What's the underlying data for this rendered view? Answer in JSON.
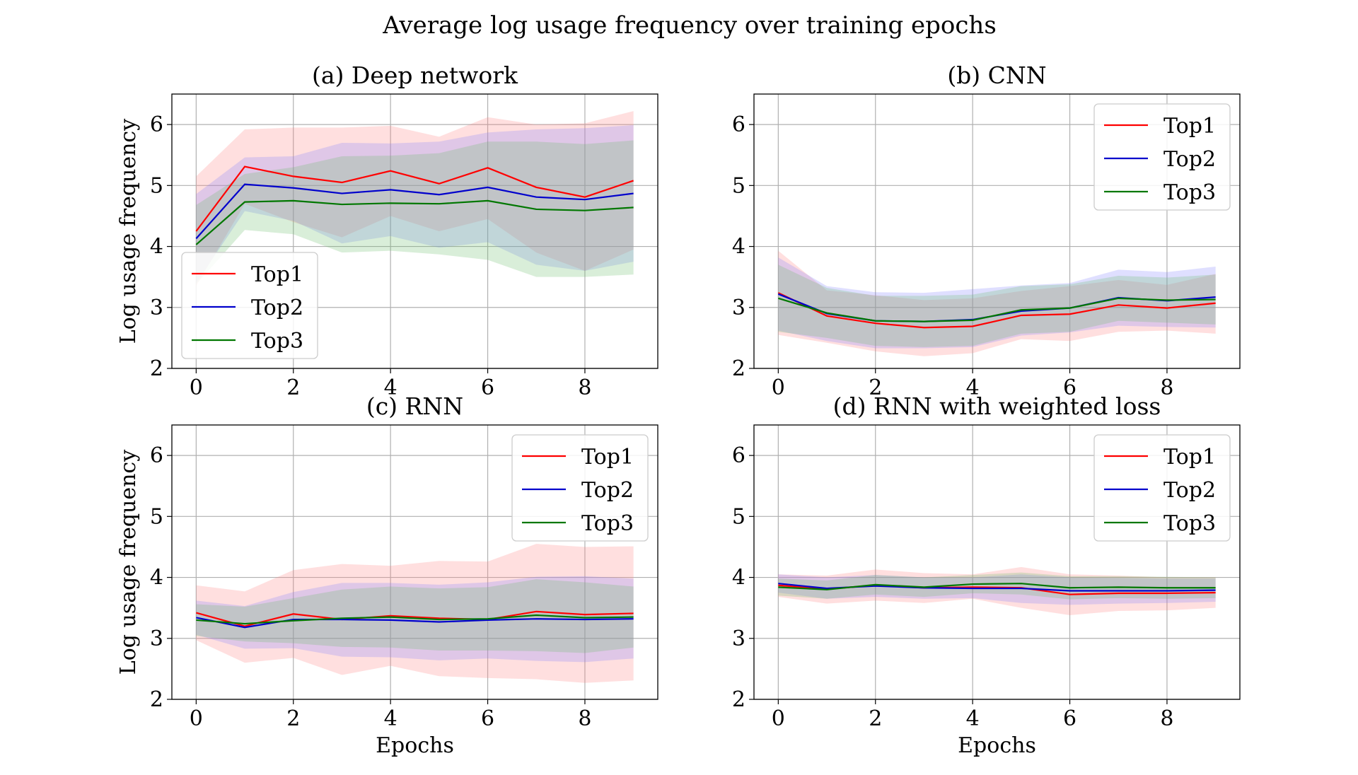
{
  "figure": {
    "title": "Average log usage frequency over training epochs",
    "series_colors": {
      "Top1": "#ff0000",
      "Top2": "#0000cc",
      "Top3": "#007700"
    },
    "band_colors": {
      "Top1": "#ff8080",
      "Top2": "#8080ff",
      "Top3": "#66bb66"
    }
  },
  "chart_data": [
    {
      "type": "line",
      "title": "(a) Deep network",
      "xlabel": "",
      "ylabel": "Log usage frequency",
      "xlim": [
        -0.5,
        9.5
      ],
      "ylim": [
        2,
        6.5
      ],
      "xticks": [
        "0",
        "2",
        "4",
        "6",
        "8"
      ],
      "yticks": [
        "2",
        "3",
        "4",
        "5",
        "6"
      ],
      "grid": true,
      "legend": "lower-left",
      "x": [
        0,
        1,
        2,
        3,
        4,
        5,
        6,
        7,
        8,
        9
      ],
      "series": [
        {
          "name": "Top1",
          "values": [
            4.25,
            5.31,
            5.15,
            5.05,
            5.24,
            5.03,
            5.29,
            4.97,
            4.81,
            5.08
          ],
          "lower": [
            3.35,
            4.7,
            4.4,
            4.15,
            4.5,
            4.25,
            4.45,
            3.9,
            3.6,
            3.95
          ],
          "upper": [
            5.15,
            5.92,
            5.95,
            5.95,
            5.98,
            5.8,
            6.12,
            6.0,
            6.02,
            6.22
          ]
        },
        {
          "name": "Top2",
          "values": [
            4.13,
            5.02,
            4.96,
            4.87,
            4.93,
            4.85,
            4.97,
            4.81,
            4.77,
            4.87
          ],
          "lower": [
            3.4,
            4.58,
            4.42,
            4.05,
            4.17,
            3.98,
            4.07,
            3.7,
            3.6,
            3.75
          ],
          "upper": [
            4.86,
            5.46,
            5.48,
            5.7,
            5.69,
            5.72,
            5.87,
            5.92,
            5.94,
            5.99
          ]
        },
        {
          "name": "Top3",
          "values": [
            4.03,
            4.73,
            4.75,
            4.69,
            4.71,
            4.7,
            4.75,
            4.61,
            4.59,
            4.64
          ],
          "lower": [
            3.38,
            4.27,
            4.2,
            3.9,
            3.93,
            3.87,
            3.78,
            3.5,
            3.5,
            3.54
          ],
          "upper": [
            4.68,
            5.19,
            5.3,
            5.48,
            5.49,
            5.53,
            5.72,
            5.72,
            5.68,
            5.74
          ]
        }
      ]
    },
    {
      "type": "line",
      "title": "(b) CNN",
      "xlabel": "",
      "ylabel": "",
      "xlim": [
        -0.5,
        9.5
      ],
      "ylim": [
        2,
        6.5
      ],
      "xticks": [
        "0",
        "2",
        "4",
        "6",
        "8"
      ],
      "yticks": [
        "2",
        "3",
        "4",
        "5",
        "6"
      ],
      "grid": true,
      "legend": "top-right",
      "x": [
        0,
        1,
        2,
        3,
        4,
        5,
        6,
        7,
        8,
        9
      ],
      "series": [
        {
          "name": "Top1",
          "values": [
            3.24,
            2.86,
            2.74,
            2.67,
            2.69,
            2.87,
            2.89,
            3.04,
            2.99,
            3.07
          ],
          "lower": [
            2.55,
            2.42,
            2.28,
            2.2,
            2.25,
            2.48,
            2.45,
            2.6,
            2.62,
            2.57
          ],
          "upper": [
            3.93,
            3.28,
            3.2,
            3.12,
            3.15,
            3.27,
            3.35,
            3.45,
            3.37,
            3.55
          ]
        },
        {
          "name": "Top2",
          "values": [
            3.22,
            2.9,
            2.78,
            2.77,
            2.8,
            2.94,
            2.99,
            3.16,
            3.11,
            3.17
          ],
          "lower": [
            2.62,
            2.45,
            2.33,
            2.33,
            2.35,
            2.54,
            2.59,
            2.7,
            2.68,
            2.67
          ],
          "upper": [
            3.82,
            3.35,
            3.25,
            3.24,
            3.3,
            3.36,
            3.4,
            3.62,
            3.58,
            3.67
          ]
        },
        {
          "name": "Top3",
          "values": [
            3.15,
            2.91,
            2.78,
            2.77,
            2.79,
            2.96,
            2.99,
            3.15,
            3.12,
            3.13
          ],
          "lower": [
            2.6,
            2.5,
            2.37,
            2.35,
            2.37,
            2.57,
            2.6,
            2.78,
            2.75,
            2.72
          ],
          "upper": [
            3.7,
            3.32,
            3.19,
            3.19,
            3.21,
            3.35,
            3.38,
            3.52,
            3.49,
            3.54
          ]
        }
      ]
    },
    {
      "type": "line",
      "title": "(c) RNN",
      "xlabel": "Epochs",
      "ylabel": "Log usage frequency",
      "xlim": [
        -0.5,
        9.5
      ],
      "ylim": [
        2,
        6.5
      ],
      "xticks": [
        "0",
        "2",
        "4",
        "6",
        "8"
      ],
      "yticks": [
        "2",
        "3",
        "4",
        "5",
        "6"
      ],
      "grid": true,
      "legend": "top-right",
      "x": [
        0,
        1,
        2,
        3,
        4,
        5,
        6,
        7,
        8,
        9
      ],
      "series": [
        {
          "name": "Top1",
          "values": [
            3.42,
            3.2,
            3.4,
            3.31,
            3.37,
            3.33,
            3.31,
            3.44,
            3.39,
            3.41
          ],
          "lower": [
            2.97,
            2.6,
            2.68,
            2.4,
            2.55,
            2.38,
            2.35,
            2.33,
            2.27,
            2.31
          ],
          "upper": [
            3.87,
            3.77,
            4.12,
            4.22,
            4.19,
            4.27,
            4.26,
            4.55,
            4.5,
            4.51
          ]
        },
        {
          "name": "Top2",
          "values": [
            3.34,
            3.18,
            3.31,
            3.31,
            3.3,
            3.27,
            3.3,
            3.32,
            3.31,
            3.32
          ],
          "lower": [
            3.06,
            2.83,
            2.84,
            2.7,
            2.69,
            2.64,
            2.67,
            2.63,
            2.61,
            2.67
          ],
          "upper": [
            3.62,
            3.53,
            3.76,
            3.91,
            3.91,
            3.88,
            3.92,
            4.01,
            4.02,
            3.98
          ]
        },
        {
          "name": "Top3",
          "values": [
            3.3,
            3.24,
            3.29,
            3.33,
            3.35,
            3.31,
            3.32,
            3.38,
            3.34,
            3.35
          ],
          "lower": [
            3.04,
            2.95,
            2.92,
            2.86,
            2.85,
            2.8,
            2.8,
            2.79,
            2.76,
            2.85
          ],
          "upper": [
            3.56,
            3.52,
            3.66,
            3.8,
            3.85,
            3.82,
            3.84,
            3.97,
            3.92,
            3.85
          ]
        }
      ]
    },
    {
      "type": "line",
      "title": "(d) RNN with weighted loss",
      "xlabel": "Epochs",
      "ylabel": "",
      "xlim": [
        -0.5,
        9.5
      ],
      "ylim": [
        2,
        6.5
      ],
      "xticks": [
        "0",
        "2",
        "4",
        "6",
        "8"
      ],
      "yticks": [
        "2",
        "3",
        "4",
        "5",
        "6"
      ],
      "grid": true,
      "legend": "top-right",
      "x": [
        0,
        1,
        2,
        3,
        4,
        5,
        6,
        7,
        8,
        9
      ],
      "series": [
        {
          "name": "Top1",
          "values": [
            3.87,
            3.81,
            3.87,
            3.83,
            3.84,
            3.83,
            3.72,
            3.74,
            3.74,
            3.75
          ],
          "lower": [
            3.68,
            3.57,
            3.62,
            3.58,
            3.65,
            3.5,
            3.38,
            3.45,
            3.46,
            3.5
          ],
          "upper": [
            4.05,
            4.03,
            4.13,
            4.07,
            4.05,
            4.17,
            4.05,
            4.03,
            4.0,
            4.0
          ]
        },
        {
          "name": "Top2",
          "values": [
            3.9,
            3.82,
            3.86,
            3.83,
            3.82,
            3.82,
            3.78,
            3.78,
            3.78,
            3.79
          ],
          "lower": [
            3.75,
            3.65,
            3.68,
            3.65,
            3.66,
            3.58,
            3.55,
            3.57,
            3.58,
            3.6
          ],
          "upper": [
            4.05,
            4.0,
            4.04,
            4.0,
            4.0,
            4.05,
            4.0,
            3.99,
            3.98,
            3.98
          ]
        },
        {
          "name": "Top3",
          "values": [
            3.84,
            3.8,
            3.88,
            3.84,
            3.89,
            3.9,
            3.83,
            3.84,
            3.83,
            3.83
          ],
          "lower": [
            3.7,
            3.65,
            3.72,
            3.68,
            3.74,
            3.72,
            3.64,
            3.66,
            3.65,
            3.66
          ],
          "upper": [
            3.98,
            3.95,
            4.04,
            4.0,
            4.04,
            4.08,
            4.02,
            4.02,
            4.01,
            4.0
          ]
        }
      ]
    }
  ]
}
